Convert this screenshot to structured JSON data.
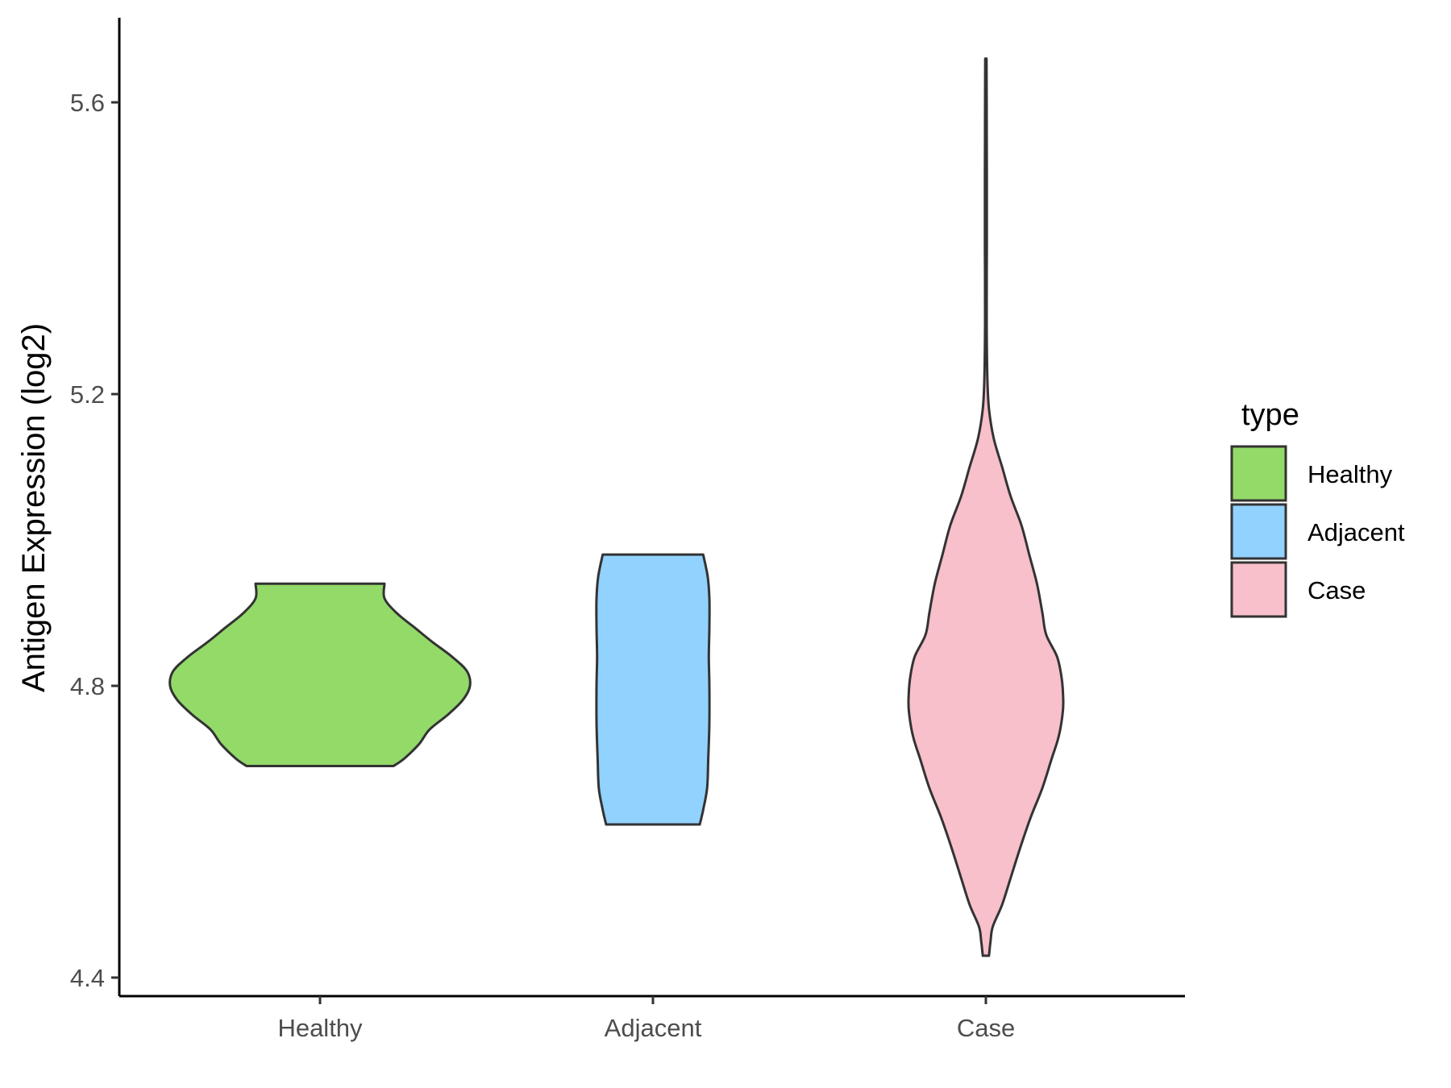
{
  "chart_data": {
    "type": "violin",
    "ylabel": "Antigen Expression (log2)",
    "xlabel": "",
    "ylim": [
      4.37,
      5.72
    ],
    "yticks": [
      4.4,
      4.8,
      5.2,
      5.6
    ],
    "ytick_labels": [
      "4.4",
      "4.8",
      "5.2",
      "5.6"
    ],
    "categories": [
      "Healthy",
      "Adjacent",
      "Case"
    ],
    "grid": false,
    "legend": {
      "title": "type",
      "position": "right",
      "entries": [
        "Healthy",
        "Adjacent",
        "Case"
      ]
    },
    "series": [
      {
        "name": "Healthy",
        "color": "#93DA69",
        "min": 4.69,
        "max": 4.94,
        "density_profile": [
          [
            4.69,
            0.49
          ],
          [
            4.7,
            0.56
          ],
          [
            4.72,
            0.66
          ],
          [
            4.74,
            0.73
          ],
          [
            4.76,
            0.85
          ],
          [
            4.78,
            0.95
          ],
          [
            4.8,
            1.0
          ],
          [
            4.82,
            0.98
          ],
          [
            4.84,
            0.88
          ],
          [
            4.86,
            0.75
          ],
          [
            4.88,
            0.63
          ],
          [
            4.9,
            0.51
          ],
          [
            4.92,
            0.43
          ],
          [
            4.94,
            0.43
          ]
        ]
      },
      {
        "name": "Adjacent",
        "color": "#91D2FF",
        "min": 4.61,
        "max": 4.98,
        "density_profile": [
          [
            4.61,
            0.83
          ],
          [
            4.63,
            0.89
          ],
          [
            4.66,
            0.96
          ],
          [
            4.7,
            0.98
          ],
          [
            4.75,
            1.0
          ],
          [
            4.8,
            1.0
          ],
          [
            4.84,
            0.99
          ],
          [
            4.88,
            1.0
          ],
          [
            4.92,
            1.0
          ],
          [
            4.95,
            0.97
          ],
          [
            4.98,
            0.89
          ]
        ]
      },
      {
        "name": "Case",
        "color": "#F7C0CB",
        "min": 4.43,
        "max": 5.66,
        "density_profile": [
          [
            4.43,
            0.04
          ],
          [
            4.45,
            0.06
          ],
          [
            4.47,
            0.09
          ],
          [
            4.5,
            0.21
          ],
          [
            4.54,
            0.33
          ],
          [
            4.58,
            0.45
          ],
          [
            4.62,
            0.58
          ],
          [
            4.66,
            0.73
          ],
          [
            4.7,
            0.85
          ],
          [
            4.73,
            0.94
          ],
          [
            4.76,
            0.99
          ],
          [
            4.78,
            1.0
          ],
          [
            4.81,
            0.98
          ],
          [
            4.84,
            0.92
          ],
          [
            4.87,
            0.78
          ],
          [
            4.9,
            0.73
          ],
          [
            4.94,
            0.66
          ],
          [
            4.98,
            0.56
          ],
          [
            5.02,
            0.46
          ],
          [
            5.06,
            0.32
          ],
          [
            5.1,
            0.21
          ],
          [
            5.14,
            0.1
          ],
          [
            5.18,
            0.04
          ],
          [
            5.22,
            0.02
          ],
          [
            5.3,
            0.01
          ],
          [
            5.4,
            0.012
          ],
          [
            5.5,
            0.012
          ],
          [
            5.6,
            0.01
          ],
          [
            5.66,
            0.008
          ]
        ]
      }
    ]
  }
}
